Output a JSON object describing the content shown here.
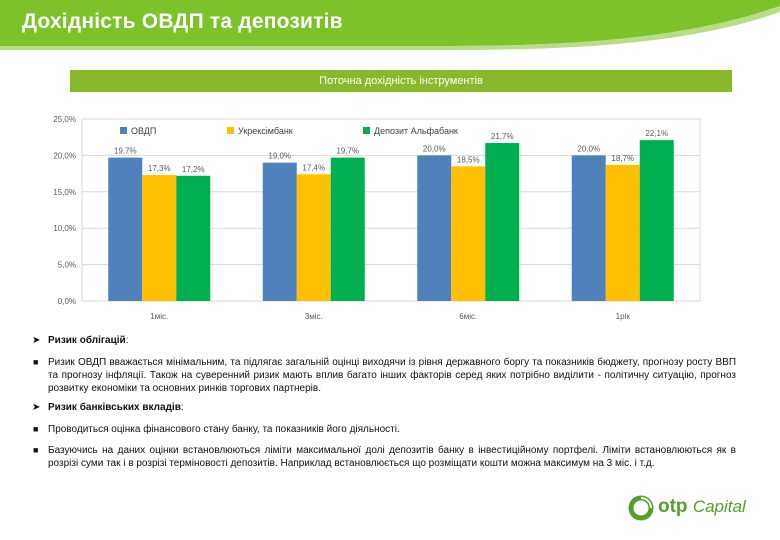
{
  "header": {
    "title": "Дохідність ОВДП та депозитів"
  },
  "subtitle": "Поточна дохідність інструментів",
  "colors": {
    "header_green": "#7cc32a",
    "bar_green": "#8ab82b",
    "series_blue": "#4f81bd",
    "series_yellow": "#ffc000",
    "series_green": "#00b050",
    "brand_green": "#55a02a"
  },
  "chart_data": {
    "type": "bar",
    "categories": [
      "1міс.",
      "3міс.",
      "6міс.",
      "1рік"
    ],
    "series": [
      {
        "name": "ОВДП",
        "values": [
          19.7,
          19.0,
          20.0,
          20.0
        ],
        "labels": [
          "19,7%",
          "19,0%",
          "20,0%",
          "20,0%"
        ]
      },
      {
        "name": "Укрексімбанк",
        "values": [
          17.3,
          17.4,
          18.5,
          18.7
        ],
        "labels": [
          "17,3%",
          "17,4%",
          "18,5%",
          "18,7%"
        ]
      },
      {
        "name": "Депозит Альфабанк",
        "values": [
          17.2,
          19.7,
          21.7,
          22.1
        ],
        "labels": [
          "17,2%",
          "19,7%",
          "21,7%",
          "22,1%"
        ]
      }
    ],
    "yticks": [
      "0,0%",
      "5,0%",
      "10,0%",
      "15,0%",
      "20,0%",
      "25,0%"
    ],
    "ylim": [
      0,
      25
    ],
    "grid": true,
    "legend": "top"
  },
  "text": {
    "risk_bonds_heading": "Ризик облігацій",
    "risk_bonds_colon": ":",
    "risk_bonds_para": "Ризик ОВДП вважається мінімальним, та підлягає загальній оцінці виходячи із рівня державного боргу та показників бюджету, прогнозу росту ВВП та прогнозу інфляції. Також на суверенний ризик мають вплив багато інших факторів серед яких потрібно виділити - політичну ситуацію, прогноз розвитку економіки та основних ринків торгових партнерів.",
    "risk_bank_heading": "Ризик банківських вкладів",
    "risk_bank_colon": ":",
    "risk_bank_para1": "Проводиться оцінка фінансового стану банку, та показників його діяльності.",
    "risk_bank_para2": "Базуючись на даних оцінки встановлюються ліміти максимальної долі депозитів банку в інвестиційному портфелі. Ліміти встановлюються як в розрізі суми так і в розрізі терміновості депозитів. Наприклад встановлюється що розміщати кошти можна максимум на 3 міс. і т.д."
  },
  "logo": {
    "brand": "otp",
    "suffix": "Capital"
  }
}
